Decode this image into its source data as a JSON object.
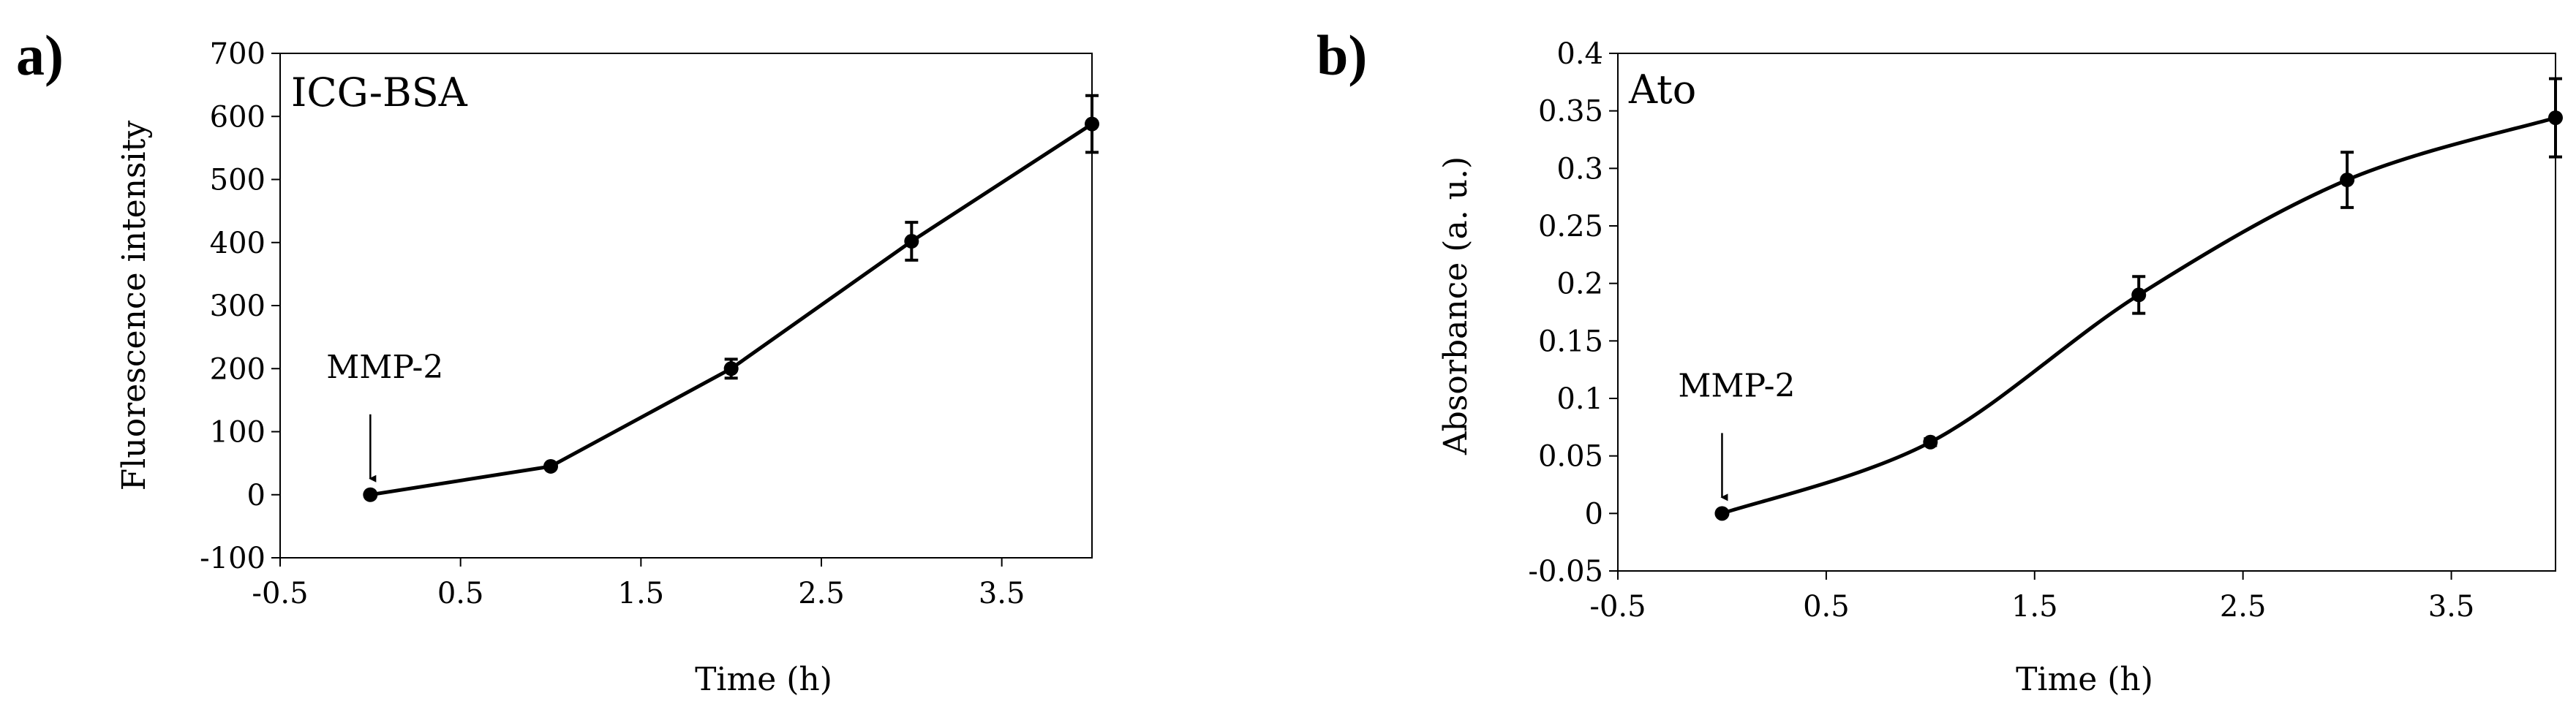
{
  "chart_data": [
    {
      "panel_label": "a)",
      "type": "line",
      "title": "ICG-BSA",
      "xlabel": "Time (h)",
      "ylabel": "Fluorescence intensity",
      "xlim": [
        -0.5,
        4
      ],
      "ylim": [
        -100,
        700
      ],
      "xticks": [
        -0.5,
        0.5,
        1.5,
        2.5,
        3.5
      ],
      "xtick_labels": [
        "-0.5",
        "0.5",
        "1.5",
        "2.5",
        "3.5"
      ],
      "yticks": [
        -100,
        0,
        100,
        200,
        300,
        400,
        500,
        600,
        700
      ],
      "ytick_labels": [
        "-100",
        "0",
        "100",
        "200",
        "300",
        "400",
        "500",
        "600",
        "700"
      ],
      "grid": false,
      "smooth": false,
      "series": [
        {
          "x": [
            0,
            1,
            2,
            3,
            4
          ],
          "y": [
            0,
            45,
            200,
            402,
            588
          ],
          "error": [
            0,
            0,
            15,
            30,
            45
          ]
        }
      ],
      "annotations": [
        {
          "text": "MMP-2",
          "arrow_to": {
            "x": 0,
            "y": 0
          }
        }
      ]
    },
    {
      "panel_label": "b)",
      "type": "line",
      "title": "Ato",
      "xlabel": "Time (h)",
      "ylabel": "Absorbance (a. u.)",
      "xlim": [
        -0.5,
        4
      ],
      "ylim": [
        -0.05,
        0.4
      ],
      "xticks": [
        -0.5,
        0.5,
        1.5,
        2.5,
        3.5
      ],
      "xtick_labels": [
        "-0.5",
        "0.5",
        "1.5",
        "2.5",
        "3.5"
      ],
      "yticks": [
        -0.05,
        0,
        0.05,
        0.1,
        0.15,
        0.2,
        0.25,
        0.3,
        0.35,
        0.4
      ],
      "ytick_labels": [
        "-0.05",
        "0",
        "0.05",
        "0.1",
        "0.15",
        "0.2",
        "0.25",
        "0.3",
        "0.35",
        "0.4"
      ],
      "grid": false,
      "smooth": true,
      "series": [
        {
          "x": [
            0,
            1,
            2,
            3,
            4
          ],
          "y": [
            0,
            0.062,
            0.19,
            0.29,
            0.344
          ],
          "error": [
            0,
            0.003,
            0.016,
            0.024,
            0.034
          ]
        }
      ],
      "annotations": [
        {
          "text": "MMP-2",
          "arrow_to": {
            "x": 0,
            "y": 0
          }
        }
      ]
    }
  ]
}
